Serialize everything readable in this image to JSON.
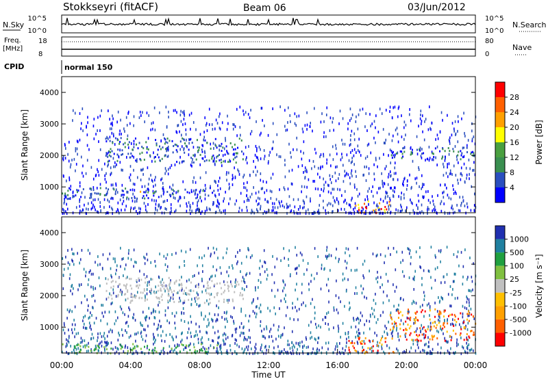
{
  "header": {
    "station": "Stokkseyri (fitACF)",
    "beam": "Beam 06",
    "date": "03/Jun/2012"
  },
  "top_panels": {
    "nsky_label": "N.Sky",
    "nsky_ticks": [
      "10^5",
      "10^0"
    ],
    "nsearch_label": "N.Search",
    "nsearch_ticks": [
      "10^5",
      "10^0"
    ],
    "freq_label": "Freq.",
    "freq_unit": "[MHz]",
    "freq_ticks": [
      "18",
      "8"
    ],
    "nave_label": "Nave",
    "nave_ticks": [
      "80",
      "0"
    ],
    "cpid_label": "CPID",
    "cpid_value": "normal 150"
  },
  "time_axis": {
    "label": "Time UT",
    "ticks": [
      "00:00",
      "04:00",
      "08:00",
      "12:00",
      "16:00",
      "20:00",
      "00:00"
    ]
  },
  "colors": {
    "power": [
      "#0000ff",
      "#2a4fbf",
      "#3a8f50",
      "#4aa040",
      "#ffff00",
      "#ffa000",
      "#ff6000",
      "#ff0000"
    ],
    "velocity": [
      "#2030b0",
      "#2080a0",
      "#20a040",
      "#80c040",
      "#c0c0c0",
      "#ffc000",
      "#ffa000",
      "#ff6000",
      "#ff0000"
    ]
  },
  "chart_data": [
    {
      "type": "heatmap",
      "name": "power",
      "ylabel": "Slant Range [km]",
      "xlabel": "",
      "xlim": [
        0,
        24
      ],
      "ylim": [
        180,
        4500
      ],
      "yticks": [
        "1000",
        "2000",
        "3000",
        "4000"
      ],
      "colorbar_label": "Power [dB]",
      "colorbar_ticks": [
        "28",
        "24",
        "20",
        "16",
        "12",
        "8",
        "4"
      ],
      "features": [
        {
          "t0": 0.0,
          "t1": 9.0,
          "r0": 650,
          "r1": 1000,
          "level": "low"
        },
        {
          "t0": 2.5,
          "t1": 10.5,
          "r0": 1800,
          "r1": 2600,
          "level": "low"
        },
        {
          "t0": 4.5,
          "t1": 5.5,
          "r0": 800,
          "r1": 950,
          "level": "mid"
        },
        {
          "t0": 17.0,
          "t1": 19.0,
          "r0": 200,
          "r1": 600,
          "level": "high"
        },
        {
          "t0": 19.0,
          "t1": 24.0,
          "r0": 1900,
          "r1": 2300,
          "level": "low"
        }
      ]
    },
    {
      "type": "heatmap",
      "name": "velocity",
      "ylabel": "Slant Range [km]",
      "xlabel": "Time UT",
      "xlim": [
        0,
        24
      ],
      "ylim": [
        180,
        4500
      ],
      "yticks": [
        "1000",
        "2000",
        "3000",
        "4000"
      ],
      "colorbar_label": "Velocity [m s⁻¹]",
      "colorbar_ticks": [
        "1000",
        "500",
        "100",
        "25",
        "-25",
        "-100",
        "-500",
        "-1000"
      ],
      "features": [
        {
          "t0": 0.0,
          "t1": 9.0,
          "r0": 200,
          "r1": 500,
          "level": "green"
        },
        {
          "t0": 2.5,
          "t1": 10.5,
          "r0": 1800,
          "r1": 2600,
          "level": "grey"
        },
        {
          "t0": 16.5,
          "t1": 19.5,
          "r0": 200,
          "r1": 700,
          "level": "orange"
        },
        {
          "t0": 19.0,
          "t1": 24.0,
          "r0": 600,
          "r1": 1600,
          "level": "orange"
        }
      ]
    }
  ]
}
